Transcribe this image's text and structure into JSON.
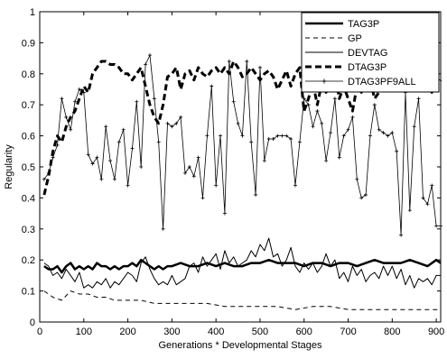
{
  "chart_data": {
    "type": "line",
    "xlabel": "Generations * Developmental Stages",
    "ylabel": "Regularity",
    "xlim": [
      0,
      910
    ],
    "ylim": [
      0,
      1
    ],
    "xticks": [
      0,
      100,
      200,
      300,
      400,
      500,
      600,
      700,
      800,
      900
    ],
    "yticks": [
      0,
      0.1,
      0.2,
      0.3,
      0.4,
      0.5,
      0.6,
      0.7,
      0.8,
      0.9,
      1
    ],
    "xtick_labels": [
      "0",
      "100",
      "200",
      "300",
      "400",
      "500",
      "600",
      "700",
      "800",
      "900"
    ],
    "ytick_labels": [
      "0",
      "0.1",
      "0.2",
      "0.3",
      "0.4",
      "0.5",
      "0.6",
      "0.7",
      "0.8",
      "0.9",
      "1"
    ],
    "grid": false,
    "legend_position": "top-right",
    "series": [
      {
        "name": "TAG3P",
        "style": "solid-thick",
        "x": [
          10,
          20,
          30,
          40,
          50,
          60,
          70,
          80,
          90,
          100,
          110,
          120,
          130,
          140,
          150,
          160,
          170,
          180,
          190,
          200,
          210,
          220,
          230,
          240,
          250,
          260,
          270,
          280,
          290,
          300,
          320,
          340,
          360,
          380,
          400,
          420,
          440,
          460,
          480,
          500,
          520,
          540,
          560,
          580,
          600,
          620,
          640,
          660,
          680,
          700,
          720,
          740,
          760,
          780,
          800,
          820,
          840,
          860,
          880,
          900,
          910
        ],
        "y": [
          0.18,
          0.17,
          0.17,
          0.18,
          0.16,
          0.18,
          0.19,
          0.17,
          0.18,
          0.17,
          0.18,
          0.17,
          0.19,
          0.18,
          0.18,
          0.17,
          0.18,
          0.17,
          0.18,
          0.18,
          0.19,
          0.18,
          0.2,
          0.19,
          0.18,
          0.17,
          0.18,
          0.17,
          0.18,
          0.18,
          0.19,
          0.18,
          0.18,
          0.19,
          0.18,
          0.19,
          0.18,
          0.18,
          0.19,
          0.19,
          0.2,
          0.19,
          0.19,
          0.19,
          0.18,
          0.19,
          0.19,
          0.18,
          0.19,
          0.19,
          0.18,
          0.19,
          0.2,
          0.19,
          0.19,
          0.19,
          0.2,
          0.19,
          0.18,
          0.2,
          0.19
        ]
      },
      {
        "name": "GP",
        "style": "dashed-thin",
        "x": [
          10,
          30,
          50,
          70,
          90,
          110,
          130,
          150,
          170,
          200,
          230,
          260,
          300,
          340,
          380,
          420,
          460,
          500,
          540,
          580,
          620,
          660,
          700,
          740,
          780,
          820,
          860,
          900,
          910
        ],
        "y": [
          0.1,
          0.08,
          0.07,
          0.1,
          0.09,
          0.09,
          0.08,
          0.08,
          0.07,
          0.07,
          0.07,
          0.06,
          0.06,
          0.06,
          0.06,
          0.05,
          0.05,
          0.05,
          0.05,
          0.04,
          0.05,
          0.05,
          0.04,
          0.04,
          0.04,
          0.04,
          0.04,
          0.04,
          0.04
        ]
      },
      {
        "name": "DEVTAG",
        "style": "solid-thin",
        "x": [
          10,
          20,
          30,
          40,
          50,
          60,
          70,
          80,
          90,
          100,
          110,
          120,
          130,
          140,
          150,
          160,
          170,
          180,
          190,
          200,
          210,
          220,
          230,
          240,
          250,
          260,
          270,
          280,
          290,
          300,
          310,
          320,
          330,
          340,
          350,
          360,
          370,
          380,
          390,
          400,
          410,
          420,
          430,
          440,
          450,
          460,
          470,
          480,
          490,
          500,
          510,
          520,
          530,
          540,
          550,
          560,
          570,
          580,
          590,
          600,
          610,
          620,
          630,
          640,
          650,
          660,
          670,
          680,
          690,
          700,
          710,
          720,
          730,
          740,
          750,
          760,
          770,
          780,
          790,
          800,
          810,
          820,
          830,
          840,
          850,
          860,
          870,
          880,
          890,
          900,
          910
        ],
        "y": [
          0.19,
          0.18,
          0.15,
          0.16,
          0.14,
          0.17,
          0.15,
          0.13,
          0.16,
          0.11,
          0.12,
          0.11,
          0.13,
          0.12,
          0.14,
          0.11,
          0.13,
          0.12,
          0.14,
          0.16,
          0.15,
          0.13,
          0.19,
          0.21,
          0.17,
          0.14,
          0.12,
          0.13,
          0.12,
          0.15,
          0.12,
          0.13,
          0.14,
          0.18,
          0.19,
          0.16,
          0.21,
          0.18,
          0.2,
          0.22,
          0.17,
          0.23,
          0.19,
          0.21,
          0.18,
          0.19,
          0.2,
          0.23,
          0.21,
          0.25,
          0.23,
          0.27,
          0.21,
          0.22,
          0.18,
          0.2,
          0.24,
          0.18,
          0.16,
          0.19,
          0.17,
          0.19,
          0.16,
          0.18,
          0.22,
          0.18,
          0.2,
          0.14,
          0.16,
          0.13,
          0.18,
          0.15,
          0.17,
          0.13,
          0.15,
          0.16,
          0.14,
          0.18,
          0.15,
          0.18,
          0.14,
          0.17,
          0.12,
          0.15,
          0.11,
          0.14,
          0.13,
          0.14,
          0.12,
          0.15,
          0.15
        ]
      },
      {
        "name": "DTAG3P",
        "style": "dashed-thick",
        "x": [
          10,
          20,
          30,
          40,
          50,
          60,
          70,
          80,
          90,
          100,
          110,
          120,
          130,
          140,
          150,
          160,
          170,
          180,
          190,
          200,
          210,
          220,
          230,
          240,
          250,
          260,
          270,
          280,
          290,
          300,
          310,
          320,
          330,
          340,
          350,
          360,
          370,
          380,
          390,
          400,
          410,
          420,
          430,
          440,
          450,
          460,
          470,
          480,
          490,
          500,
          510,
          520,
          530,
          540,
          550,
          560,
          570,
          580,
          590,
          600,
          610,
          620,
          630,
          640,
          650,
          660,
          670,
          680,
          690,
          700,
          710,
          720,
          730,
          740,
          750,
          760,
          770,
          780,
          790,
          800,
          810,
          820,
          830,
          840,
          850,
          860,
          870,
          880,
          890,
          900,
          910
        ],
        "y": [
          0.41,
          0.47,
          0.55,
          0.6,
          0.58,
          0.63,
          0.66,
          0.68,
          0.72,
          0.76,
          0.74,
          0.8,
          0.82,
          0.84,
          0.84,
          0.83,
          0.83,
          0.82,
          0.8,
          0.8,
          0.78,
          0.8,
          0.82,
          0.76,
          0.7,
          0.66,
          0.64,
          0.7,
          0.79,
          0.8,
          0.82,
          0.75,
          0.8,
          0.81,
          0.78,
          0.82,
          0.8,
          0.79,
          0.81,
          0.82,
          0.8,
          0.82,
          0.8,
          0.84,
          0.82,
          0.79,
          0.8,
          0.82,
          0.8,
          0.78,
          0.8,
          0.81,
          0.79,
          0.75,
          0.78,
          0.81,
          0.76,
          0.8,
          0.82,
          0.68,
          0.72,
          0.77,
          0.7,
          0.77,
          0.74,
          0.78,
          0.8,
          0.72,
          0.76,
          0.72,
          0.68,
          0.76,
          0.74,
          0.8,
          0.78,
          0.72,
          0.74,
          0.76,
          0.78,
          0.78,
          0.8,
          0.76,
          0.8,
          0.77,
          0.75,
          0.79,
          0.76,
          0.8,
          0.74,
          0.76,
          0.78
        ]
      },
      {
        "name": "DTAG3PF9ALL",
        "style": "solid-thin-plus",
        "x": [
          10,
          20,
          30,
          40,
          50,
          60,
          70,
          80,
          90,
          100,
          110,
          120,
          130,
          140,
          150,
          160,
          170,
          180,
          190,
          200,
          210,
          220,
          230,
          240,
          250,
          260,
          270,
          280,
          290,
          300,
          310,
          320,
          330,
          340,
          350,
          360,
          370,
          380,
          390,
          400,
          410,
          420,
          430,
          440,
          450,
          460,
          470,
          480,
          490,
          500,
          510,
          520,
          530,
          540,
          550,
          560,
          570,
          580,
          590,
          600,
          610,
          620,
          630,
          640,
          650,
          660,
          670,
          680,
          690,
          700,
          710,
          720,
          730,
          740,
          750,
          760,
          770,
          780,
          790,
          800,
          810,
          820,
          830,
          840,
          850,
          860,
          870,
          880,
          890,
          900,
          910
        ],
        "y": [
          0.46,
          0.48,
          0.53,
          0.57,
          0.72,
          0.66,
          0.62,
          0.71,
          0.75,
          0.74,
          0.54,
          0.51,
          0.53,
          0.46,
          0.63,
          0.52,
          0.46,
          0.58,
          0.62,
          0.44,
          0.56,
          0.71,
          0.5,
          0.83,
          0.86,
          0.72,
          0.58,
          0.3,
          0.64,
          0.63,
          0.64,
          0.66,
          0.48,
          0.5,
          0.47,
          0.53,
          0.4,
          0.6,
          0.76,
          0.44,
          0.6,
          0.35,
          0.84,
          0.71,
          0.64,
          0.6,
          0.84,
          0.58,
          0.41,
          0.82,
          0.52,
          0.59,
          0.59,
          0.6,
          0.6,
          0.6,
          0.59,
          0.44,
          0.58,
          0.72,
          0.7,
          0.63,
          0.68,
          0.64,
          0.52,
          0.61,
          0.72,
          0.53,
          0.6,
          0.62,
          0.66,
          0.46,
          0.4,
          0.41,
          0.6,
          0.7,
          0.62,
          0.61,
          0.6,
          0.61,
          0.55,
          0.28,
          0.74,
          0.36,
          0.63,
          0.72,
          0.4,
          0.38,
          0.44,
          0.31,
          0.31
        ]
      }
    ]
  }
}
